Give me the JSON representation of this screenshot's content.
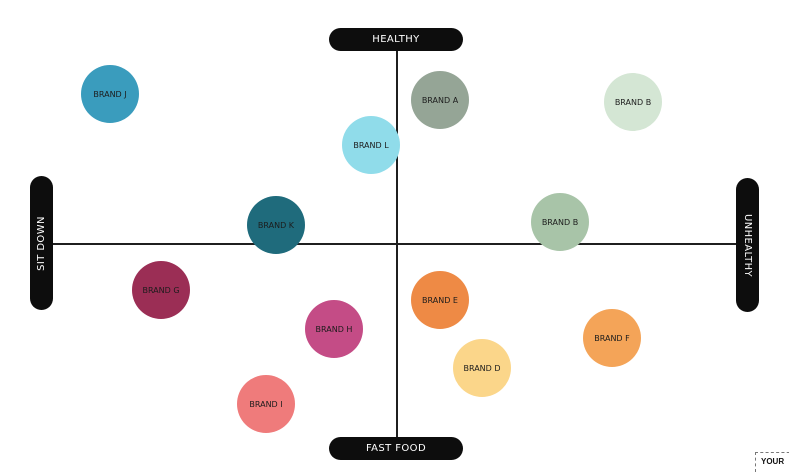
{
  "axes": {
    "top": "HEALTHY",
    "bottom": "FAST FOOD",
    "left": "SIT DOWN",
    "right": "UNHEALTHY"
  },
  "brands": [
    {
      "label": "BRAND J",
      "color": "#3a9cbd"
    },
    {
      "label": "BRAND A",
      "color": "#95a596"
    },
    {
      "label": "BRAND B",
      "color": "#d4e6d4"
    },
    {
      "label": "BRAND L",
      "color": "#90dcea"
    },
    {
      "label": "BRAND K",
      "color": "#1f6b7c"
    },
    {
      "label": "BRAND B",
      "color": "#a8c4a8"
    },
    {
      "label": "BRAND G",
      "color": "#9b2e55"
    },
    {
      "label": "BRAND E",
      "color": "#ee8a45"
    },
    {
      "label": "BRAND H",
      "color": "#c44c86"
    },
    {
      "label": "BRAND F",
      "color": "#f4a458"
    },
    {
      "label": "BRAND D",
      "color": "#fbd68a"
    },
    {
      "label": "BRAND I",
      "color": "#ef7b7b"
    }
  ],
  "corner_text": "YOUR"
}
